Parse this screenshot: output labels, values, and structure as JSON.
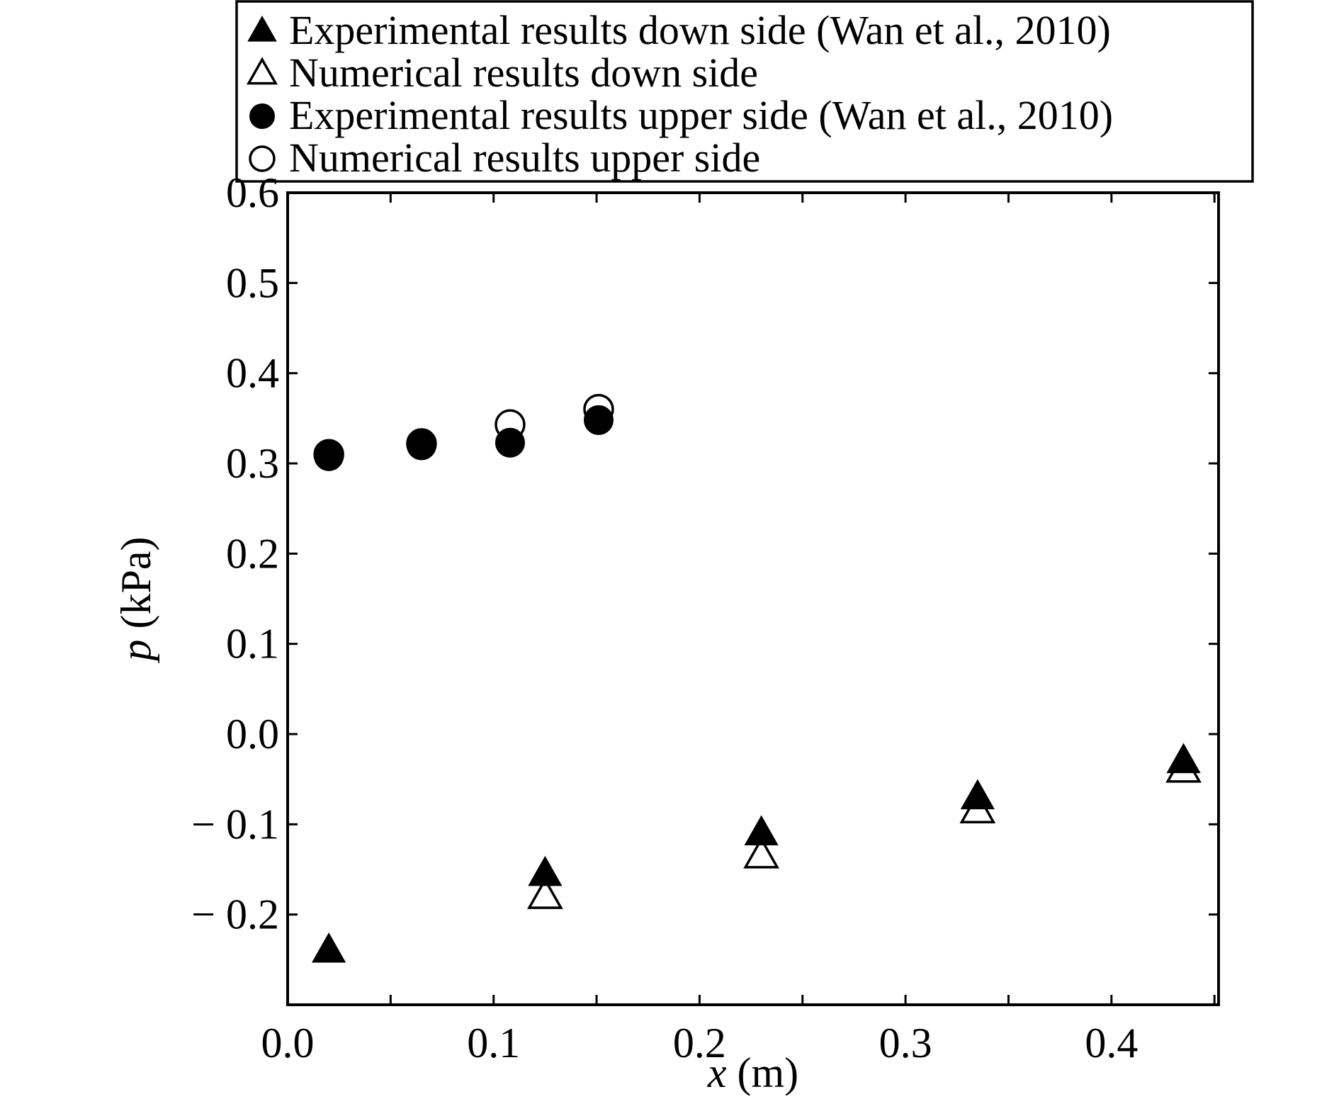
{
  "chart_data": {
    "type": "scatter",
    "xlabel": {
      "var": "x",
      "unit": " (m)"
    },
    "ylabel": {
      "var": "p",
      "unit": " (kPa)"
    },
    "xlim": [
      0.0,
      0.452
    ],
    "ylim": [
      -0.3,
      0.6
    ],
    "xticks": [
      0.0,
      0.05,
      0.1,
      0.15,
      0.2,
      0.25,
      0.3,
      0.35,
      0.4,
      0.45
    ],
    "xtick_labels": [
      {
        "value": 0.0,
        "label": "0.0"
      },
      {
        "value": 0.1,
        "label": "0.1"
      },
      {
        "value": 0.2,
        "label": "0.2"
      },
      {
        "value": 0.3,
        "label": "0.3"
      },
      {
        "value": 0.4,
        "label": "0.4"
      }
    ],
    "yticks": [
      -0.2,
      -0.1,
      0.0,
      0.1,
      0.2,
      0.3,
      0.4,
      0.5,
      0.6
    ],
    "ytick_labels": [
      {
        "value": 0.6,
        "label": "0.6"
      },
      {
        "value": 0.5,
        "label": "0.5"
      },
      {
        "value": 0.4,
        "label": "0.4"
      },
      {
        "value": 0.3,
        "label": "0.3"
      },
      {
        "value": 0.2,
        "label": "0.2"
      },
      {
        "value": 0.1,
        "label": "0.1"
      },
      {
        "value": 0.0,
        "label": "0.0"
      },
      {
        "value": -0.1,
        "label": "− 0.1"
      },
      {
        "value": -0.2,
        "label": "− 0.2"
      }
    ],
    "grid": false,
    "legend_position": "top-outside",
    "series": [
      {
        "name": "Experimental results down side (Wan et al., 2010)",
        "marker": "triangle-filled",
        "x": [
          0.02,
          0.125,
          0.23,
          0.335,
          0.435
        ],
        "y": [
          -0.24,
          -0.155,
          -0.11,
          -0.07,
          -0.03
        ]
      },
      {
        "name": "Numerical results down side",
        "marker": "triangle-open",
        "x": [
          0.125,
          0.23,
          0.335,
          0.435
        ],
        "y": [
          -0.18,
          -0.135,
          -0.085,
          -0.04
        ]
      },
      {
        "name": "Experimental results upper side  (Wan et al., 2010)",
        "marker": "circle-filled",
        "x": [
          0.02,
          0.065,
          0.108,
          0.151
        ],
        "y": [
          0.308,
          0.32,
          0.323,
          0.348
        ]
      },
      {
        "name": "Numerical results upper side",
        "marker": "circle-open",
        "x": [
          0.02,
          0.065,
          0.108,
          0.151
        ],
        "y": [
          0.31,
          0.322,
          0.343,
          0.36
        ]
      }
    ]
  }
}
